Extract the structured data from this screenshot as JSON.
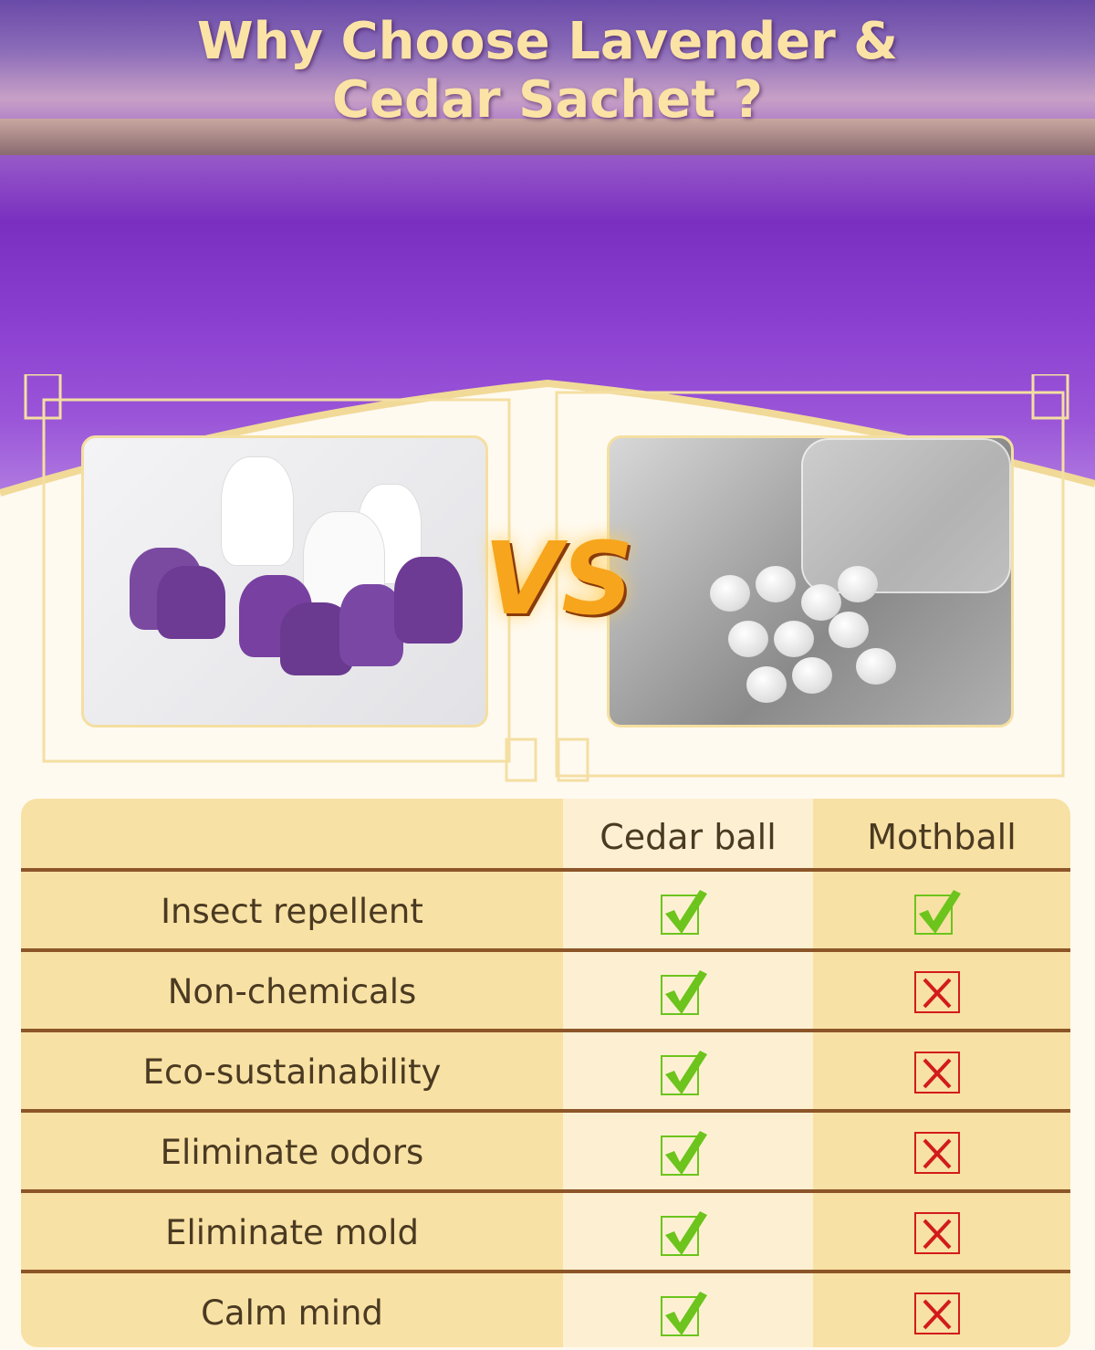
{
  "title_line1": "Why Choose Lavender &",
  "title_line2": "Cedar Sachet ?",
  "vs_label": "VS",
  "colors": {
    "check": "#6cc41c",
    "cross": "#d21b1b",
    "table_bg": "#f8e1a4",
    "accent": "#fbe3a6"
  },
  "table": {
    "headers": [
      "Cedar ball",
      "Mothball"
    ],
    "rows": [
      {
        "label": "Insect repellent",
        "cedar": "check-icon",
        "mothball": "check-icon"
      },
      {
        "label": "Non-chemicals",
        "cedar": "check-icon",
        "mothball": "cross-icon"
      },
      {
        "label": "Eco-sustainability",
        "cedar": "check-icon",
        "mothball": "cross-icon"
      },
      {
        "label": "Eliminate odors",
        "cedar": "check-icon",
        "mothball": "cross-icon"
      },
      {
        "label": "Eliminate mold",
        "cedar": "check-icon",
        "mothball": "cross-icon"
      },
      {
        "label": "Calm mind",
        "cedar": "check-icon",
        "mothball": "cross-icon"
      }
    ]
  }
}
